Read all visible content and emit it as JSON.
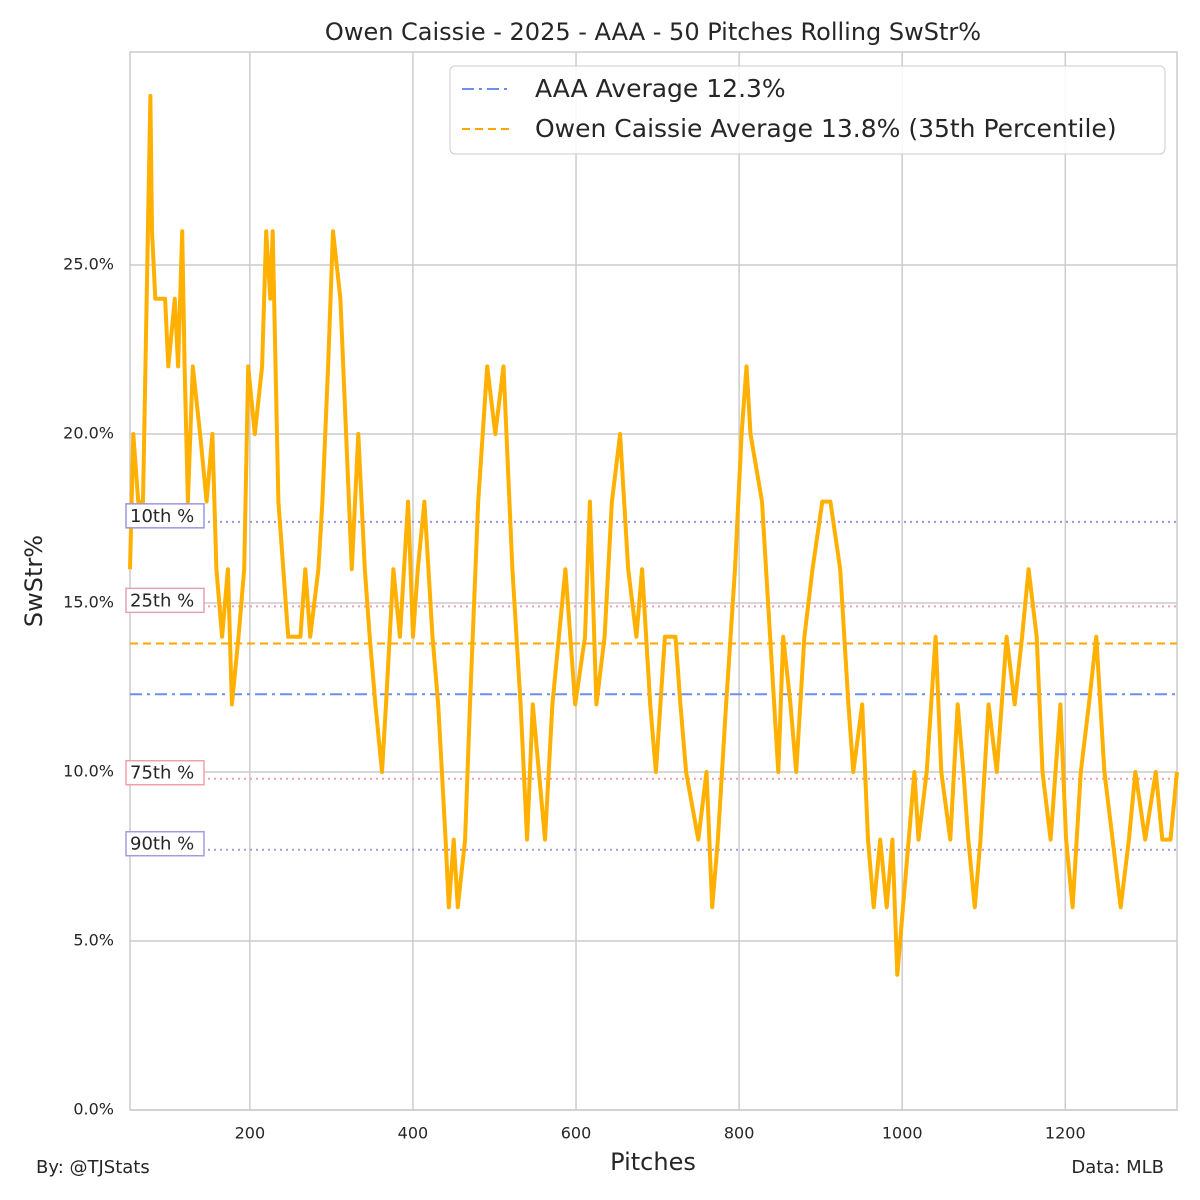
{
  "chart_data": {
    "type": "line",
    "title": "Owen Caissie - 2025 - AAA - 50 Pitches Rolling SwStr%",
    "xlabel": "Pitches",
    "ylabel": "SwStr%",
    "footer_left": "By: @TJStats",
    "footer_right": "Data: MLB",
    "xlim": [
      53,
      1337
    ],
    "ylim": [
      0,
      31.3
    ],
    "xticks": [
      200,
      400,
      600,
      800,
      1000,
      1200
    ],
    "yticks": [
      {
        "value": 0,
        "label": "0.0%"
      },
      {
        "value": 5,
        "label": "5.0%"
      },
      {
        "value": 10,
        "label": "10.0%"
      },
      {
        "value": 15,
        "label": "15.0%"
      },
      {
        "value": 20,
        "label": "20.0%"
      },
      {
        "value": 25,
        "label": "25.0%"
      }
    ],
    "grid": true,
    "legend": "upper right",
    "hlines": [
      {
        "name": "AAA Average 12.3%",
        "value": 12.3,
        "color": "#6b8ff0",
        "style": "dashdot"
      },
      {
        "name": "Owen Caissie Average 13.8% (35th Percentile)",
        "value": 13.8,
        "color": "#ffa500",
        "style": "dashed"
      }
    ],
    "reference_lines": [
      {
        "label": "10th %",
        "value": 17.4,
        "color": "#9b95e0"
      },
      {
        "label": "25th %",
        "value": 14.9,
        "color": "#e6a0b8"
      },
      {
        "label": "75th %",
        "value": 9.8,
        "color": "#f0a0a8"
      },
      {
        "label": "90th %",
        "value": 7.7,
        "color": "#a39be0"
      }
    ],
    "x": [
      53,
      57,
      63,
      69,
      75,
      78,
      80,
      84,
      96,
      100,
      108,
      112,
      117,
      120,
      124,
      130,
      139,
      147,
      154,
      159,
      166,
      173,
      178,
      186,
      193,
      198,
      206,
      215,
      220,
      225,
      228,
      235,
      241,
      247,
      262,
      268,
      274,
      284,
      289,
      296,
      302,
      311,
      318,
      325,
      333,
      341,
      347,
      354,
      362,
      367,
      376,
      384,
      394,
      400,
      406,
      414,
      424,
      431,
      440,
      444,
      450,
      455,
      464,
      470,
      480,
      491,
      501,
      511,
      522,
      532,
      540,
      547,
      562,
      571,
      587,
      599,
      611,
      617,
      625,
      635,
      644,
      654,
      664,
      674,
      681,
      691,
      698,
      709,
      722,
      728,
      735,
      750,
      760,
      767,
      774,
      784,
      795,
      803,
      809,
      814,
      828,
      838,
      848,
      854,
      863,
      870,
      880,
      890,
      902,
      912,
      924,
      934,
      940,
      951,
      958,
      965,
      973,
      981,
      988,
      994,
      1001,
      1008,
      1015,
      1020,
      1030,
      1041,
      1048,
      1059,
      1068,
      1075,
      1081,
      1089,
      1096,
      1106,
      1116,
      1128,
      1138,
      1147,
      1155,
      1165,
      1172,
      1182,
      1194,
      1201,
      1209,
      1219,
      1229,
      1238,
      1248,
      1258,
      1268,
      1278,
      1286,
      1298,
      1311,
      1319,
      1329,
      1337
    ],
    "series": [
      {
        "color": "#ffb000",
        "values": [
          16,
          20,
          18,
          18,
          26,
          30,
          26,
          24,
          24,
          22,
          24,
          22,
          26,
          22,
          18,
          22,
          20,
          18,
          20,
          16,
          14,
          16,
          12,
          14,
          16,
          22,
          20,
          22,
          26,
          24,
          26,
          18,
          16,
          14,
          14,
          16,
          14,
          16,
          18,
          22,
          26,
          24,
          20,
          16,
          20,
          16,
          14,
          12,
          10,
          12,
          16,
          14,
          18,
          14,
          16,
          18,
          14,
          12,
          8,
          6,
          8,
          6,
          8,
          12,
          18,
          22,
          20,
          22,
          16,
          12,
          8,
          12,
          8,
          12,
          16,
          12,
          14,
          18,
          12,
          14,
          18,
          20,
          16,
          14,
          16,
          12,
          10,
          14,
          14,
          12,
          10,
          8,
          10,
          6,
          8,
          12,
          16,
          20,
          22,
          20,
          18,
          14,
          10,
          14,
          12,
          10,
          14,
          16,
          18,
          18,
          16,
          12,
          10,
          12,
          8,
          6,
          8,
          6,
          8,
          4,
          6,
          8,
          10,
          8,
          10,
          14,
          10,
          8,
          12,
          10,
          8,
          6,
          8,
          12,
          10,
          14,
          12,
          14,
          16,
          14,
          10,
          8,
          12,
          8,
          6,
          10,
          12,
          14,
          10,
          8,
          6,
          8,
          10,
          8,
          10,
          8,
          8,
          10
        ]
      }
    ]
  }
}
